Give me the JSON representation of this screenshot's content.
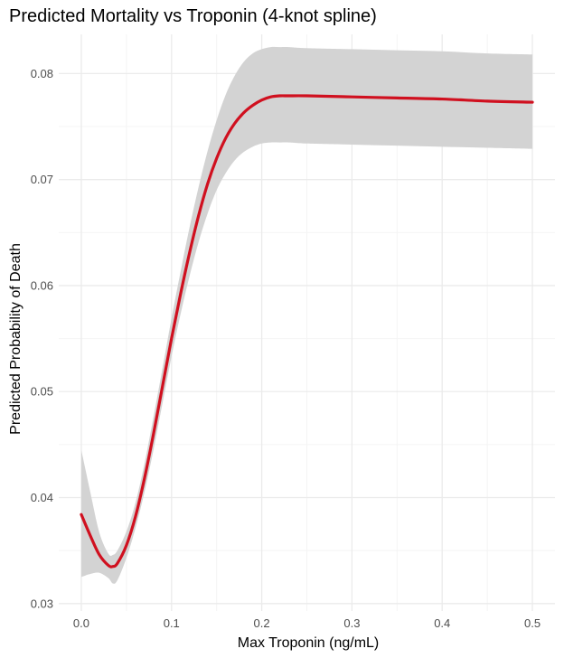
{
  "chart_data": {
    "type": "line",
    "title": "Predicted Mortality vs Troponin (4-knot spline)",
    "xlabel": "Max Troponin (ng/mL)",
    "ylabel": "Predicted Probability of Death",
    "xlim": [
      -0.025,
      0.525
    ],
    "ylim": [
      0.0293,
      0.0837
    ],
    "x_ticks": [
      0.0,
      0.1,
      0.2,
      0.3,
      0.4,
      0.5
    ],
    "x_tick_labels": [
      "0.0",
      "0.1",
      "0.2",
      "0.3",
      "0.4",
      "0.5"
    ],
    "y_ticks": [
      0.03,
      0.04,
      0.05,
      0.06,
      0.07,
      0.08
    ],
    "y_tick_labels": [
      "0.03",
      "0.04",
      "0.05",
      "0.06",
      "0.07",
      "0.08"
    ],
    "grid": true,
    "legend": "none",
    "colors": {
      "line": "#d0101f",
      "band": "#d3d3d3",
      "grid_major": "#ebebeb",
      "grid_minor": "#f4f4f4"
    },
    "series": [
      {
        "x": [
          0.0,
          0.01,
          0.02,
          0.03,
          0.035,
          0.04,
          0.05,
          0.06,
          0.07,
          0.08,
          0.09,
          0.1,
          0.11,
          0.12,
          0.13,
          0.14,
          0.15,
          0.16,
          0.17,
          0.18,
          0.19,
          0.2,
          0.21,
          0.22,
          0.23,
          0.25,
          0.3,
          0.35,
          0.4,
          0.45,
          0.5
        ],
        "y": [
          0.0384,
          0.0364,
          0.0346,
          0.0336,
          0.0335,
          0.0338,
          0.0355,
          0.0382,
          0.0418,
          0.046,
          0.0505,
          0.055,
          0.0592,
          0.0631,
          0.0666,
          0.0696,
          0.072,
          0.0739,
          0.0753,
          0.0763,
          0.077,
          0.0775,
          0.0778,
          0.0779,
          0.0779,
          0.0779,
          0.0778,
          0.0777,
          0.0776,
          0.0774,
          0.0773
        ],
        "lower": [
          0.0325,
          0.0328,
          0.0329,
          0.0324,
          0.0319,
          0.0322,
          0.0343,
          0.0371,
          0.0405,
          0.0445,
          0.0489,
          0.0533,
          0.0573,
          0.0609,
          0.0641,
          0.0668,
          0.069,
          0.0706,
          0.0718,
          0.0726,
          0.0731,
          0.0734,
          0.0735,
          0.0735,
          0.0735,
          0.0734,
          0.0733,
          0.0732,
          0.0731,
          0.073,
          0.0729
        ],
        "upper": [
          0.0445,
          0.0405,
          0.0367,
          0.0347,
          0.0346,
          0.035,
          0.0368,
          0.0395,
          0.0432,
          0.0476,
          0.0522,
          0.0569,
          0.0613,
          0.0655,
          0.0693,
          0.0727,
          0.0756,
          0.078,
          0.0798,
          0.0811,
          0.0819,
          0.0823,
          0.0825,
          0.0825,
          0.0825,
          0.0824,
          0.0823,
          0.0822,
          0.0821,
          0.0819,
          0.0818
        ]
      }
    ]
  }
}
